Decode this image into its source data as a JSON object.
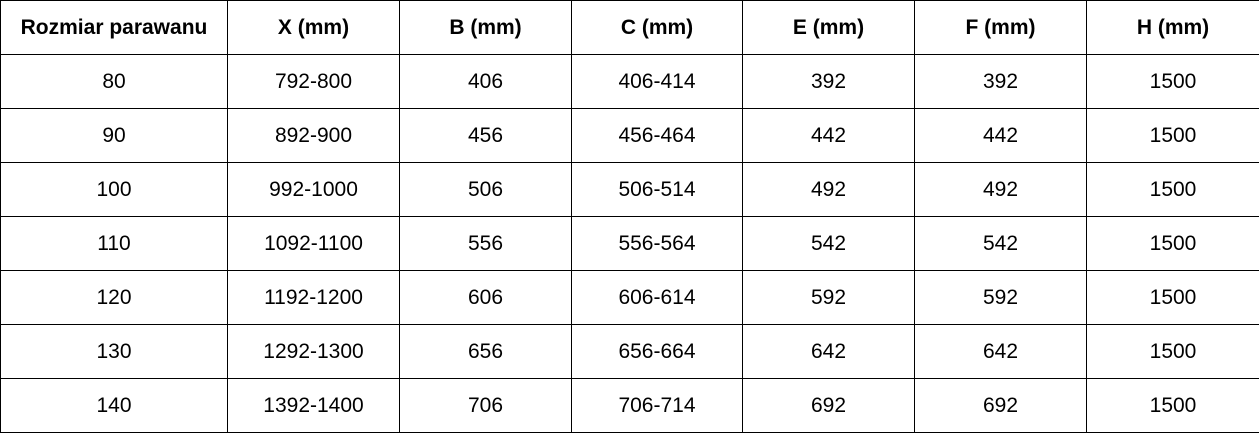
{
  "table": {
    "headers": [
      "Rozmiar parawanu",
      "X (mm)",
      "B (mm)",
      "C (mm)",
      "E (mm)",
      "F (mm)",
      "H (mm)"
    ],
    "rows": [
      [
        "80",
        "792-800",
        "406",
        "406-414",
        "392",
        "392",
        "1500"
      ],
      [
        "90",
        "892-900",
        "456",
        "456-464",
        "442",
        "442",
        "1500"
      ],
      [
        "100",
        "992-1000",
        "506",
        "506-514",
        "492",
        "492",
        "1500"
      ],
      [
        "110",
        "1092-1100",
        "556",
        "556-564",
        "542",
        "542",
        "1500"
      ],
      [
        "120",
        "1192-1200",
        "606",
        "606-614",
        "592",
        "592",
        "1500"
      ],
      [
        "130",
        "1292-1300",
        "656",
        "656-664",
        "642",
        "642",
        "1500"
      ],
      [
        "140",
        "1392-1400",
        "706",
        "706-714",
        "692",
        "692",
        "1500"
      ]
    ]
  }
}
